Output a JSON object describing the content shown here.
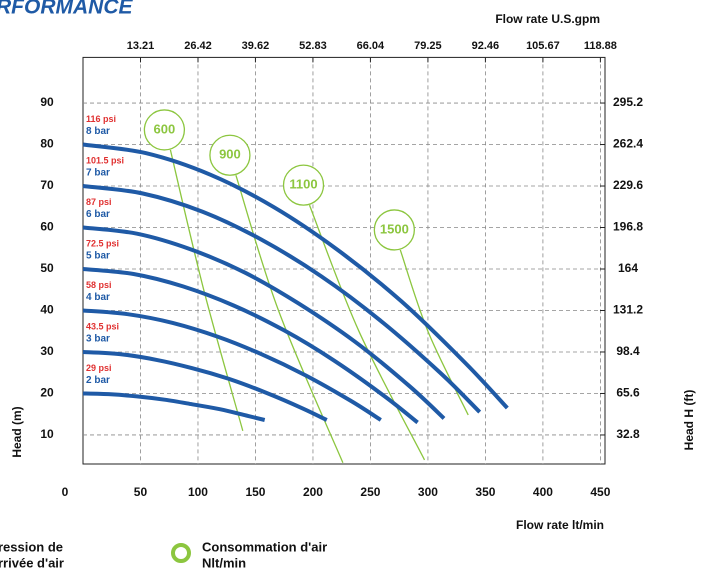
{
  "chart_data": {
    "type": "line",
    "title": "RFORMANCE",
    "x2_label": "Flow rate U.S.gpm",
    "x_label": "Flow rate  lt/min",
    "y_label": "Head (m)",
    "y2_label": "Head H (ft)",
    "xlim": [
      0,
      454
    ],
    "xticks": [
      0,
      50,
      100,
      150,
      200,
      250,
      300,
      350,
      400,
      450
    ],
    "x2lim": [
      0,
      119.94
    ],
    "x2ticks": [
      13.21,
      26.42,
      39.62,
      52.83,
      66.04,
      79.25,
      92.46,
      105.67,
      118.88
    ],
    "ylim": [
      3,
      101
    ],
    "yticks": [
      10,
      20,
      30,
      40,
      50,
      60,
      70,
      80,
      90
    ],
    "y2lim": [
      9.84,
      331.28
    ],
    "y2ticks": [
      32.8,
      65.6,
      98.4,
      131.2,
      164,
      196.8,
      229.6,
      262.4,
      295.2
    ],
    "grid": true,
    "series": [
      {
        "name": "8 bar",
        "psi": "116 psi",
        "color": "#1f5aa6",
        "x": [
          0,
          55,
          111,
          166,
          221,
          277,
          332,
          369
        ],
        "values": [
          80,
          77.9,
          72.7,
          64.9,
          54.7,
          42.2,
          27.5,
          16.5
        ]
      },
      {
        "name": "7 bar",
        "psi": "101.5 psi",
        "color": "#1f5aa6",
        "x": [
          0,
          52,
          104,
          155,
          207,
          259,
          311,
          345
        ],
        "values": [
          70,
          68.2,
          63.8,
          57.1,
          48.3,
          37.5,
          24.9,
          15.5
        ]
      },
      {
        "name": "6 bar",
        "psi": "87 psi",
        "color": "#1f5aa6",
        "x": [
          0,
          47,
          94,
          141,
          188,
          236,
          283,
          314
        ],
        "values": [
          60,
          58.5,
          54.7,
          49.1,
          41.6,
          32.6,
          22.0,
          14
        ]
      },
      {
        "name": "5 bar",
        "psi": "72.5 psi",
        "color": "#1f5aa6",
        "x": [
          0,
          44,
          87,
          131,
          175,
          218,
          262,
          291
        ],
        "values": [
          50,
          48.8,
          45.8,
          41.2,
          35.2,
          28.0,
          19.4,
          13
        ]
      },
      {
        "name": "4 bar",
        "psi": "58 psi",
        "color": "#1f5aa6",
        "x": [
          0,
          39,
          78,
          117,
          155,
          194,
          233,
          259
        ],
        "values": [
          40,
          39.1,
          37.0,
          33.7,
          29.5,
          24.3,
          18.2,
          13.6
        ]
      },
      {
        "name": "3 bar",
        "psi": "43.5 psi",
        "color": "#1f5aa6",
        "x": [
          0,
          32,
          64,
          95,
          127,
          159,
          191,
          212
        ],
        "values": [
          30,
          29.5,
          28.1,
          26.1,
          23.5,
          20.2,
          16.4,
          13.6
        ]
      },
      {
        "name": "2 bar",
        "psi": "29 psi",
        "color": "#1f5aa6",
        "x": [
          0,
          24,
          47,
          71,
          95,
          119,
          142,
          158
        ],
        "values": [
          20,
          19.8,
          19.3,
          18.5,
          17.4,
          16.2,
          14.7,
          13.6
        ]
      }
    ],
    "air_series": [
      {
        "name": "600",
        "color": "#8cc63f",
        "x": [
          76,
          105,
          139
        ],
        "values": [
          78.7,
          45,
          11
        ]
      },
      {
        "name": "900",
        "color": "#8cc63f",
        "x": [
          133,
          170,
          226
        ],
        "values": [
          72.6,
          40,
          3.3
        ]
      },
      {
        "name": "1100",
        "color": "#8cc63f",
        "x": [
          197,
          240,
          297
        ],
        "values": [
          65.4,
          35,
          4
        ]
      },
      {
        "name": "1500",
        "color": "#8cc63f",
        "x": [
          276,
          300,
          335
        ],
        "values": [
          54.6,
          35,
          14.8
        ]
      }
    ],
    "legend": [
      {
        "line1": "ression de",
        "line2": "rrivée d'air"
      },
      {
        "line1": "Consommation d'air",
        "line2": "Nlt/min"
      }
    ]
  }
}
